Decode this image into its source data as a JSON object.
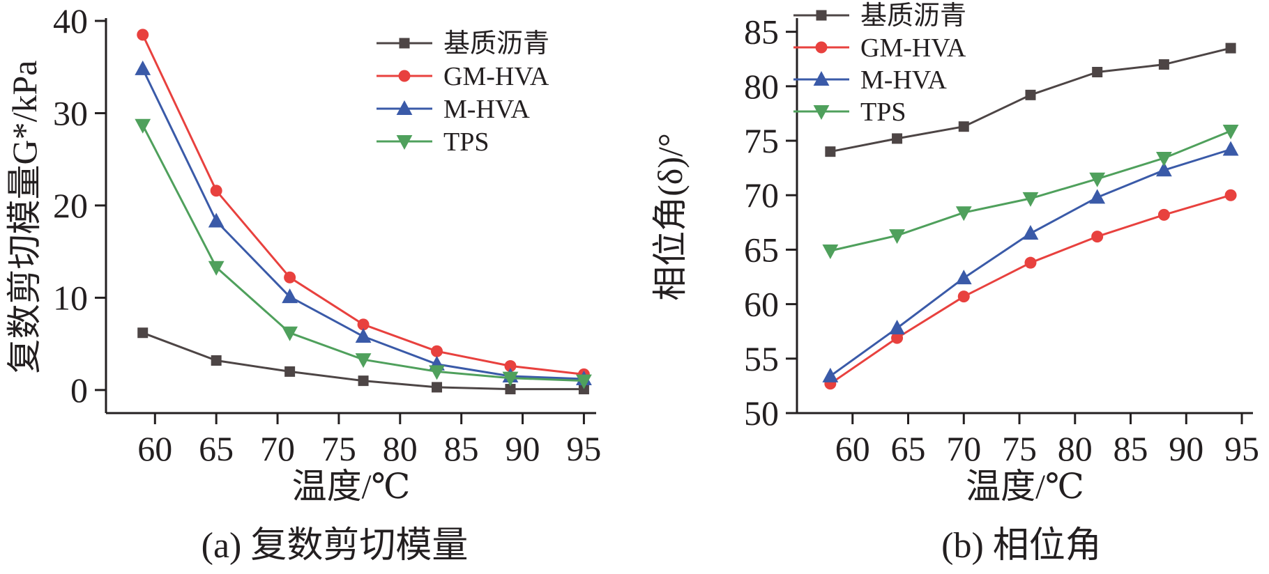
{
  "chart_data": [
    {
      "type": "line",
      "ylabel": "复数剪切模量G*/kPa",
      "xlabel": "温度/℃",
      "caption": "(a) 复数剪切模量",
      "xlim": [
        56,
        96
      ],
      "ylim": [
        -2.5,
        40
      ],
      "xticks": [
        60,
        65,
        70,
        75,
        80,
        85,
        90,
        95
      ],
      "yticks": [
        0,
        10,
        20,
        30,
        40
      ],
      "legend_position": "top-right",
      "x": [
        59,
        65,
        71,
        77,
        83,
        89,
        95
      ],
      "series": [
        {
          "name": "基质沥青",
          "marker": "square",
          "color": "#4d4545",
          "values": [
            6.2,
            3.2,
            2.0,
            1.0,
            0.3,
            0.1,
            0.1
          ]
        },
        {
          "name": "GM-HVA",
          "marker": "circle",
          "color": "#e8413e",
          "values": [
            38.5,
            21.6,
            12.2,
            7.1,
            4.2,
            2.6,
            1.7
          ]
        },
        {
          "name": "M-HVA",
          "marker": "triangle-up",
          "color": "#3a5aa8",
          "values": [
            34.8,
            18.3,
            10.1,
            5.8,
            2.8,
            1.5,
            1.2
          ]
        },
        {
          "name": "TPS",
          "marker": "triangle-down",
          "color": "#4fa05c",
          "values": [
            28.7,
            13.3,
            6.2,
            3.3,
            2.0,
            1.3,
            1.0
          ]
        }
      ]
    },
    {
      "type": "line",
      "ylabel": "相位角(δ)/°",
      "xlabel": "温度/℃",
      "caption": "(b) 相位角",
      "xlim": [
        55,
        96
      ],
      "ylim": [
        50,
        86
      ],
      "xticks": [
        60,
        65,
        70,
        75,
        80,
        85,
        90,
        95
      ],
      "yticks": [
        50,
        55,
        60,
        65,
        70,
        75,
        80,
        85
      ],
      "legend_position": "top-left",
      "x": [
        58,
        64,
        70,
        76,
        82,
        88,
        94
      ],
      "series": [
        {
          "name": "基质沥青",
          "marker": "square",
          "color": "#4d4545",
          "values": [
            74.0,
            75.2,
            76.3,
            79.2,
            81.3,
            82.0,
            83.5
          ]
        },
        {
          "name": "GM-HVA",
          "marker": "circle",
          "color": "#e8413e",
          "values": [
            52.7,
            56.9,
            60.7,
            63.8,
            66.2,
            68.2,
            70.0
          ]
        },
        {
          "name": "M-HVA",
          "marker": "triangle-up",
          "color": "#3a5aa8",
          "values": [
            53.4,
            57.8,
            62.4,
            66.5,
            69.8,
            72.3,
            74.2
          ]
        },
        {
          "name": "TPS",
          "marker": "triangle-down",
          "color": "#4fa05c",
          "values": [
            64.9,
            66.3,
            68.4,
            69.7,
            71.5,
            73.4,
            75.9
          ]
        }
      ]
    }
  ]
}
